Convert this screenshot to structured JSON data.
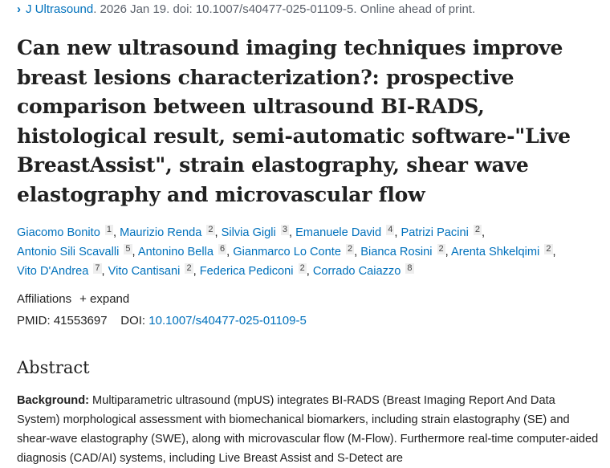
{
  "citation": {
    "journal": "J Ultrasound",
    "rest": ". 2026 Jan 19. doi: 10.1007/s40477-025-01109-5. Online ahead of print."
  },
  "title": "Can new ultrasound imaging techniques improve breast lesions characterization?: prospective comparison between ultrasound BI-RADS, histological result, semi-automatic software-\"Live BreastAssist\", strain elastography, shear wave elastography and microvascular flow",
  "authors": [
    {
      "name": "Giacomo Bonito",
      "aff": "1"
    },
    {
      "name": "Maurizio Renda",
      "aff": "2"
    },
    {
      "name": "Silvia Gigli",
      "aff": "3"
    },
    {
      "name": "Emanuele David",
      "aff": "4"
    },
    {
      "name": "Patrizi Pacini",
      "aff": "2"
    },
    {
      "name": "Antonio Sili Scavalli",
      "aff": "5"
    },
    {
      "name": "Antonino Bella",
      "aff": "6"
    },
    {
      "name": "Gianmarco Lo Conte",
      "aff": "2"
    },
    {
      "name": "Bianca Rosini",
      "aff": "2"
    },
    {
      "name": "Arenta Shkelqimi",
      "aff": "2"
    },
    {
      "name": "Vito D'Andrea",
      "aff": "7"
    },
    {
      "name": "Vito Cantisani",
      "aff": "2"
    },
    {
      "name": "Federica Pediconi",
      "aff": "2"
    },
    {
      "name": "Corrado Caiazzo",
      "aff": "8"
    }
  ],
  "affiliations": {
    "label": "Affiliations",
    "expand": "+ expand"
  },
  "ids": {
    "pmid_label": "PMID:",
    "pmid": "41553697",
    "doi_label": "DOI:",
    "doi": "10.1007/s40477-025-01109-5"
  },
  "abstract": {
    "heading": "Abstract",
    "bg_label": "Background:",
    "bg_text": " Multiparametric ultrasound (mpUS) integrates BI-RADS (Breast Imaging Report And Data System) morphological assessment with biomechanical biomarkers, including strain elastography (SE) and shear-wave elastography (SWE), along with microvascular flow (M-Flow). Furthermore real-time computer-aided diagnosis (CAD/AI) systems, including Live Breast Assist and S-Detect are"
  }
}
